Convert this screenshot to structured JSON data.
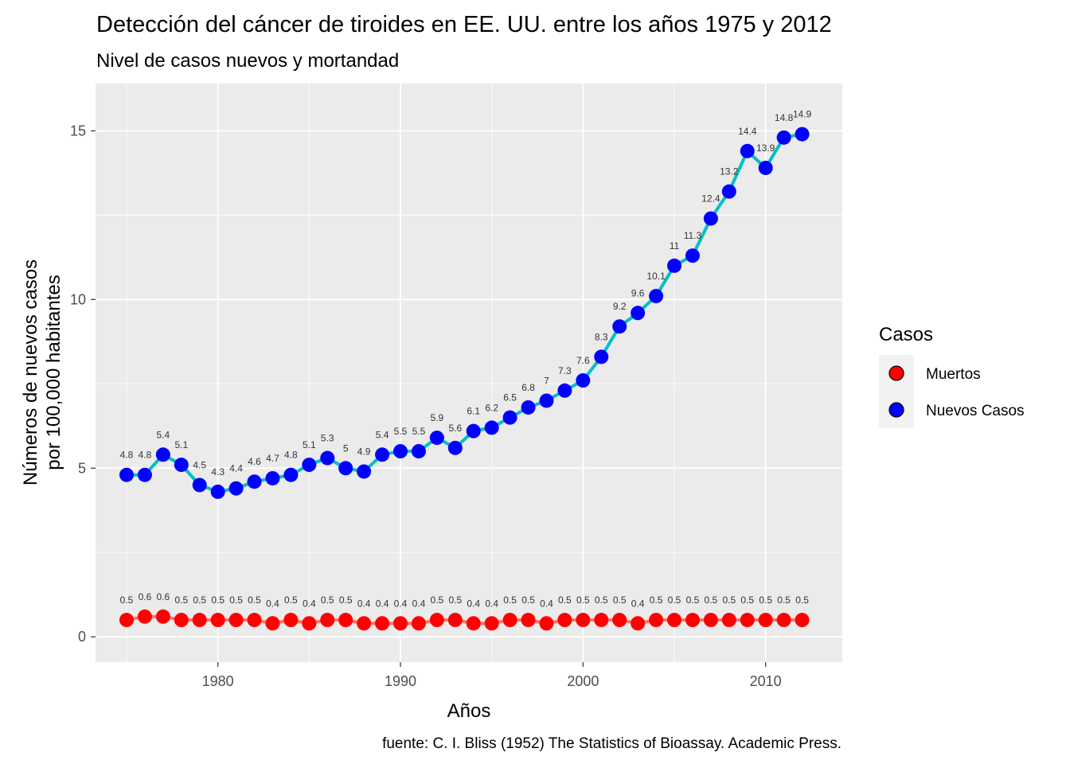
{
  "chart_data": {
    "type": "line",
    "title": "Detección del cáncer de tiroides en EE. UU. entre los años 1975 y 2012",
    "subtitle": "Nivel de casos nuevos y mortandad",
    "xlabel": "Años",
    "ylabel": [
      "Números de nuevos casos",
      "por 100,000 habitantes"
    ],
    "caption": "fuente: C. I. Bliss (1952) The Statistics of Bioassay. Academic Press.",
    "xlim": [
      1973.3,
      2014.2
    ],
    "ylim": [
      -0.75,
      16.4
    ],
    "x_ticks": [
      1980,
      1990,
      2000,
      2010
    ],
    "x_ticks_minor": [
      1975,
      1985,
      1995,
      2005
    ],
    "y_ticks": [
      0,
      5,
      10,
      15
    ],
    "y_ticks_minor": [
      2.5,
      7.5,
      12.5
    ],
    "grid": true,
    "legend": {
      "title": "Casos",
      "position": "right"
    },
    "x": [
      1975,
      1976,
      1977,
      1978,
      1979,
      1980,
      1981,
      1982,
      1983,
      1984,
      1985,
      1986,
      1987,
      1988,
      1989,
      1990,
      1991,
      1992,
      1993,
      1994,
      1995,
      1996,
      1997,
      1998,
      1999,
      2000,
      2001,
      2002,
      2003,
      2004,
      2005,
      2006,
      2007,
      2008,
      2009,
      2010,
      2011,
      2012
    ],
    "series": [
      {
        "name": "Muertos",
        "color": "#ff0000",
        "line_color": "#f8766d",
        "values": [
          0.5,
          0.6,
          0.6,
          0.5,
          0.5,
          0.5,
          0.5,
          0.5,
          0.4,
          0.5,
          0.4,
          0.5,
          0.5,
          0.4,
          0.4,
          0.4,
          0.4,
          0.5,
          0.5,
          0.4,
          0.4,
          0.5,
          0.5,
          0.4,
          0.5,
          0.5,
          0.5,
          0.5,
          0.4,
          0.5,
          0.5,
          0.5,
          0.5,
          0.5,
          0.5,
          0.5,
          0.5,
          0.5
        ]
      },
      {
        "name": "Nuevos Casos",
        "color": "#0000ff",
        "line_color": "#00bfc4",
        "values": [
          4.8,
          4.8,
          5.4,
          5.1,
          4.5,
          4.3,
          4.4,
          4.6,
          4.7,
          4.8,
          5.1,
          5.3,
          5,
          4.9,
          5.4,
          5.5,
          5.5,
          5.9,
          5.6,
          6.1,
          6.2,
          6.5,
          6.8,
          7,
          7.3,
          7.6,
          8.3,
          9.2,
          9.6,
          10.1,
          11,
          11.3,
          12.4,
          13.2,
          14.4,
          13.9,
          14.8,
          14.9
        ]
      }
    ]
  },
  "colors": {
    "panel_background": "#ebebeb",
    "grid_major": "#ffffff",
    "legend_key_background": "#f2f2f2"
  }
}
